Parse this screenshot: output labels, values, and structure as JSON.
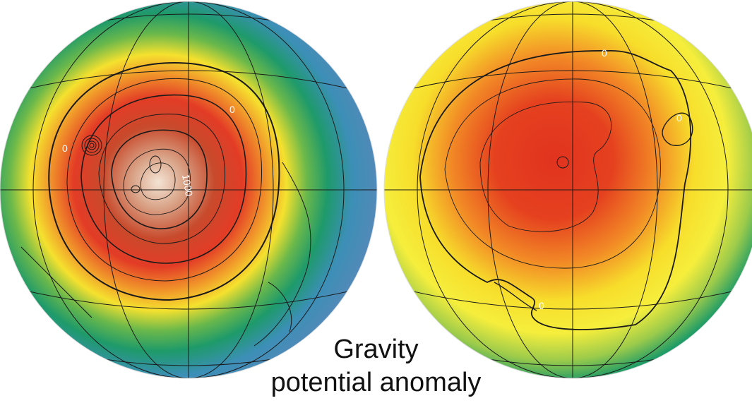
{
  "caption": {
    "line1": "Gravity",
    "line2": "potential anomaly"
  },
  "hemispheres": [
    {
      "contour_labels": [
        {
          "text": "0"
        },
        {
          "text": "0"
        },
        {
          "text": "1000"
        }
      ]
    },
    {
      "contour_labels": [
        {
          "text": "0"
        },
        {
          "text": "0"
        },
        {
          "text": "0"
        }
      ]
    }
  ],
  "colors": {
    "low": "#4f7fb6",
    "blue": "#4aa0c4",
    "green": "#1f9a63",
    "yellow": "#f5e633",
    "orange": "#f0962b",
    "red": "#e2422b",
    "high": "#f3dcc9"
  }
}
